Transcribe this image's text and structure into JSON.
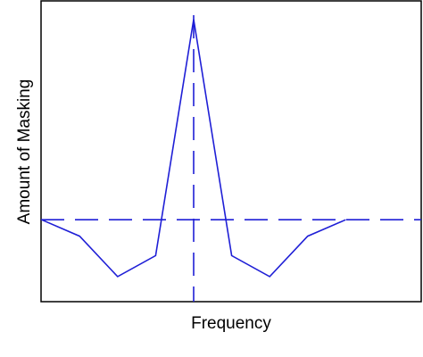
{
  "chart_data": {
    "type": "line",
    "title": "",
    "xlabel": "Frequency",
    "ylabel": "Amount of Masking",
    "xlim": [
      0,
      10
    ],
    "ylim": [
      0,
      10
    ],
    "grid": false,
    "tick_labels": false,
    "series": [
      {
        "style": "solid",
        "color": "#1f1fd6",
        "x": [
          1.0,
          2.0,
          3.0,
          4.0,
          5.0,
          6.0,
          7.0,
          8.0,
          9.0
        ],
        "y": [
          2.8,
          2.25,
          0.9,
          1.6,
          9.5,
          1.6,
          0.9,
          2.25,
          2.8
        ]
      }
    ],
    "reference_lines": [
      {
        "orientation": "horizontal",
        "value": 2.8,
        "style": "dashed",
        "color": "#1f1fd6"
      },
      {
        "orientation": "vertical",
        "value": 5.0,
        "style": "dashed",
        "color": "#1f1fd6"
      }
    ]
  }
}
